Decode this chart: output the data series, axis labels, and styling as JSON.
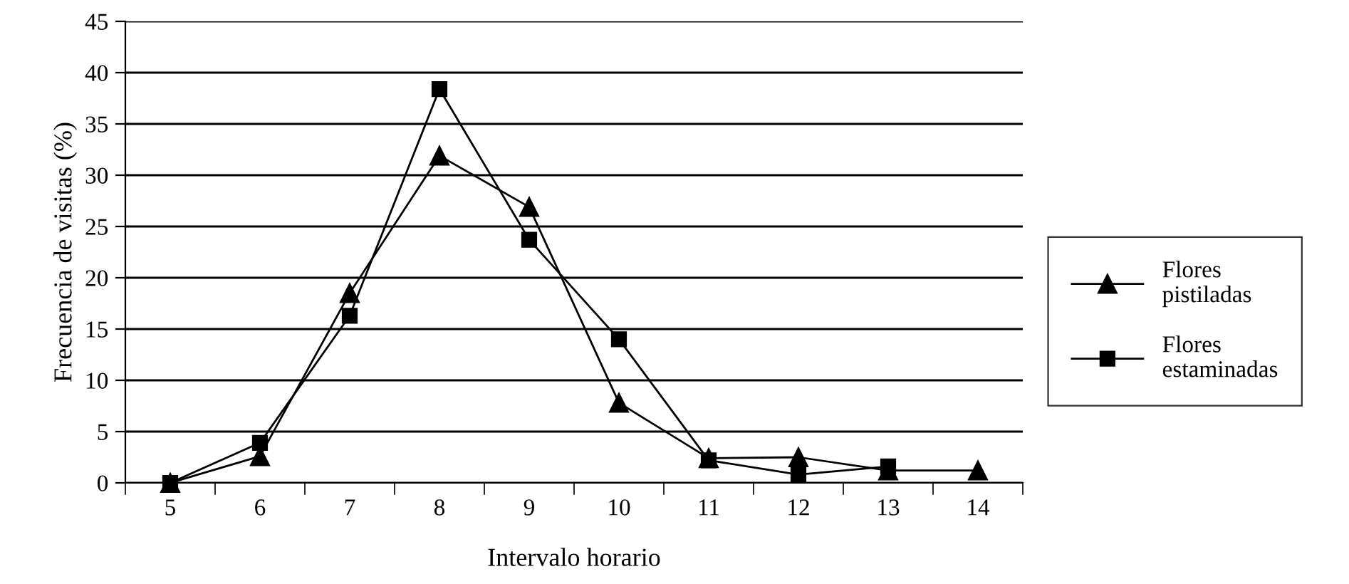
{
  "chart_data": {
    "type": "line",
    "xlabel": "Intervalo horario",
    "ylabel": "Frecuencia de visitas (%)",
    "categories": [
      "5",
      "6",
      "7",
      "8",
      "9",
      "10",
      "11",
      "12",
      "13",
      "14"
    ],
    "ylim": [
      0,
      45
    ],
    "yticks": [
      0,
      5,
      10,
      15,
      20,
      25,
      30,
      35,
      40,
      45
    ],
    "grid": "y",
    "legend": "right",
    "series": [
      {
        "name": "Flores\npistiladas",
        "color": "#000000",
        "marker": "triangle",
        "values": [
          0,
          2.6,
          18.5,
          31.9,
          26.9,
          7.8,
          2.4,
          2.5,
          1.2,
          1.2
        ]
      },
      {
        "name": "Flores\nestaminadas",
        "color": "#000000",
        "marker": "square",
        "values": [
          0,
          3.9,
          16.3,
          38.4,
          23.7,
          14.0,
          2.2,
          0.8,
          1.6,
          null
        ]
      }
    ]
  }
}
